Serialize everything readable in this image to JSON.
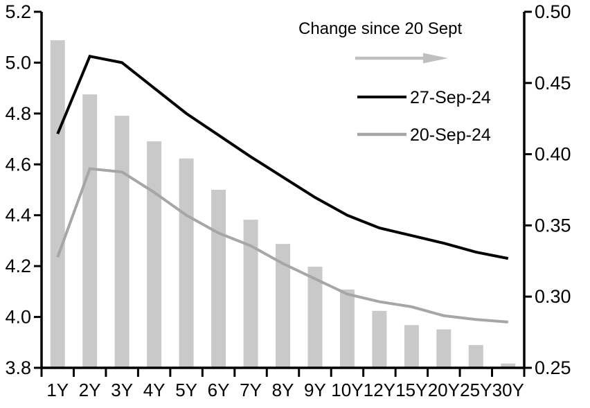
{
  "chart_data": {
    "type": "combo_bar_line",
    "categories": [
      "1Y",
      "2Y",
      "3Y",
      "4Y",
      "5Y",
      "6Y",
      "7Y",
      "8Y",
      "9Y",
      "10Y",
      "12Y",
      "15Y",
      "20Y",
      "25Y",
      "30Y"
    ],
    "series": [
      {
        "name": "Change since 20 Sept",
        "type": "bar",
        "axis": "right",
        "color": "#c9c9c9",
        "values": [
          0.48,
          0.442,
          0.427,
          0.409,
          0.397,
          0.375,
          0.354,
          0.337,
          0.321,
          0.305,
          0.29,
          0.28,
          0.277,
          0.266,
          0.253
        ]
      },
      {
        "name": "27-Sep-24",
        "type": "line",
        "axis": "left",
        "color": "#000000",
        "values": [
          4.72,
          5.025,
          5.0,
          4.9,
          4.8,
          4.715,
          4.63,
          4.55,
          4.47,
          4.4,
          4.35,
          4.32,
          4.29,
          4.255,
          4.23
        ]
      },
      {
        "name": "20-Sep-24",
        "type": "line",
        "axis": "left",
        "color": "#a6a6a6",
        "values": [
          4.235,
          4.583,
          4.57,
          4.49,
          4.4,
          4.33,
          4.28,
          4.21,
          4.15,
          4.09,
          4.06,
          4.04,
          4.005,
          3.99,
          3.98
        ]
      }
    ],
    "left_axis": {
      "min": 3.8,
      "max": 5.2,
      "tick_labels": [
        "5.2",
        "5.0",
        "4.8",
        "4.6",
        "4.4",
        "4.2",
        "4.0",
        "3.8"
      ]
    },
    "right_axis": {
      "min": 0.25,
      "max": 0.5,
      "tick_labels": [
        "0.50",
        "0.45",
        "0.40",
        "0.35",
        "0.30",
        "0.25"
      ]
    },
    "legend": {
      "position": "inside-top-right",
      "arrow_color": "#bfbfbf"
    },
    "grid": false
  }
}
